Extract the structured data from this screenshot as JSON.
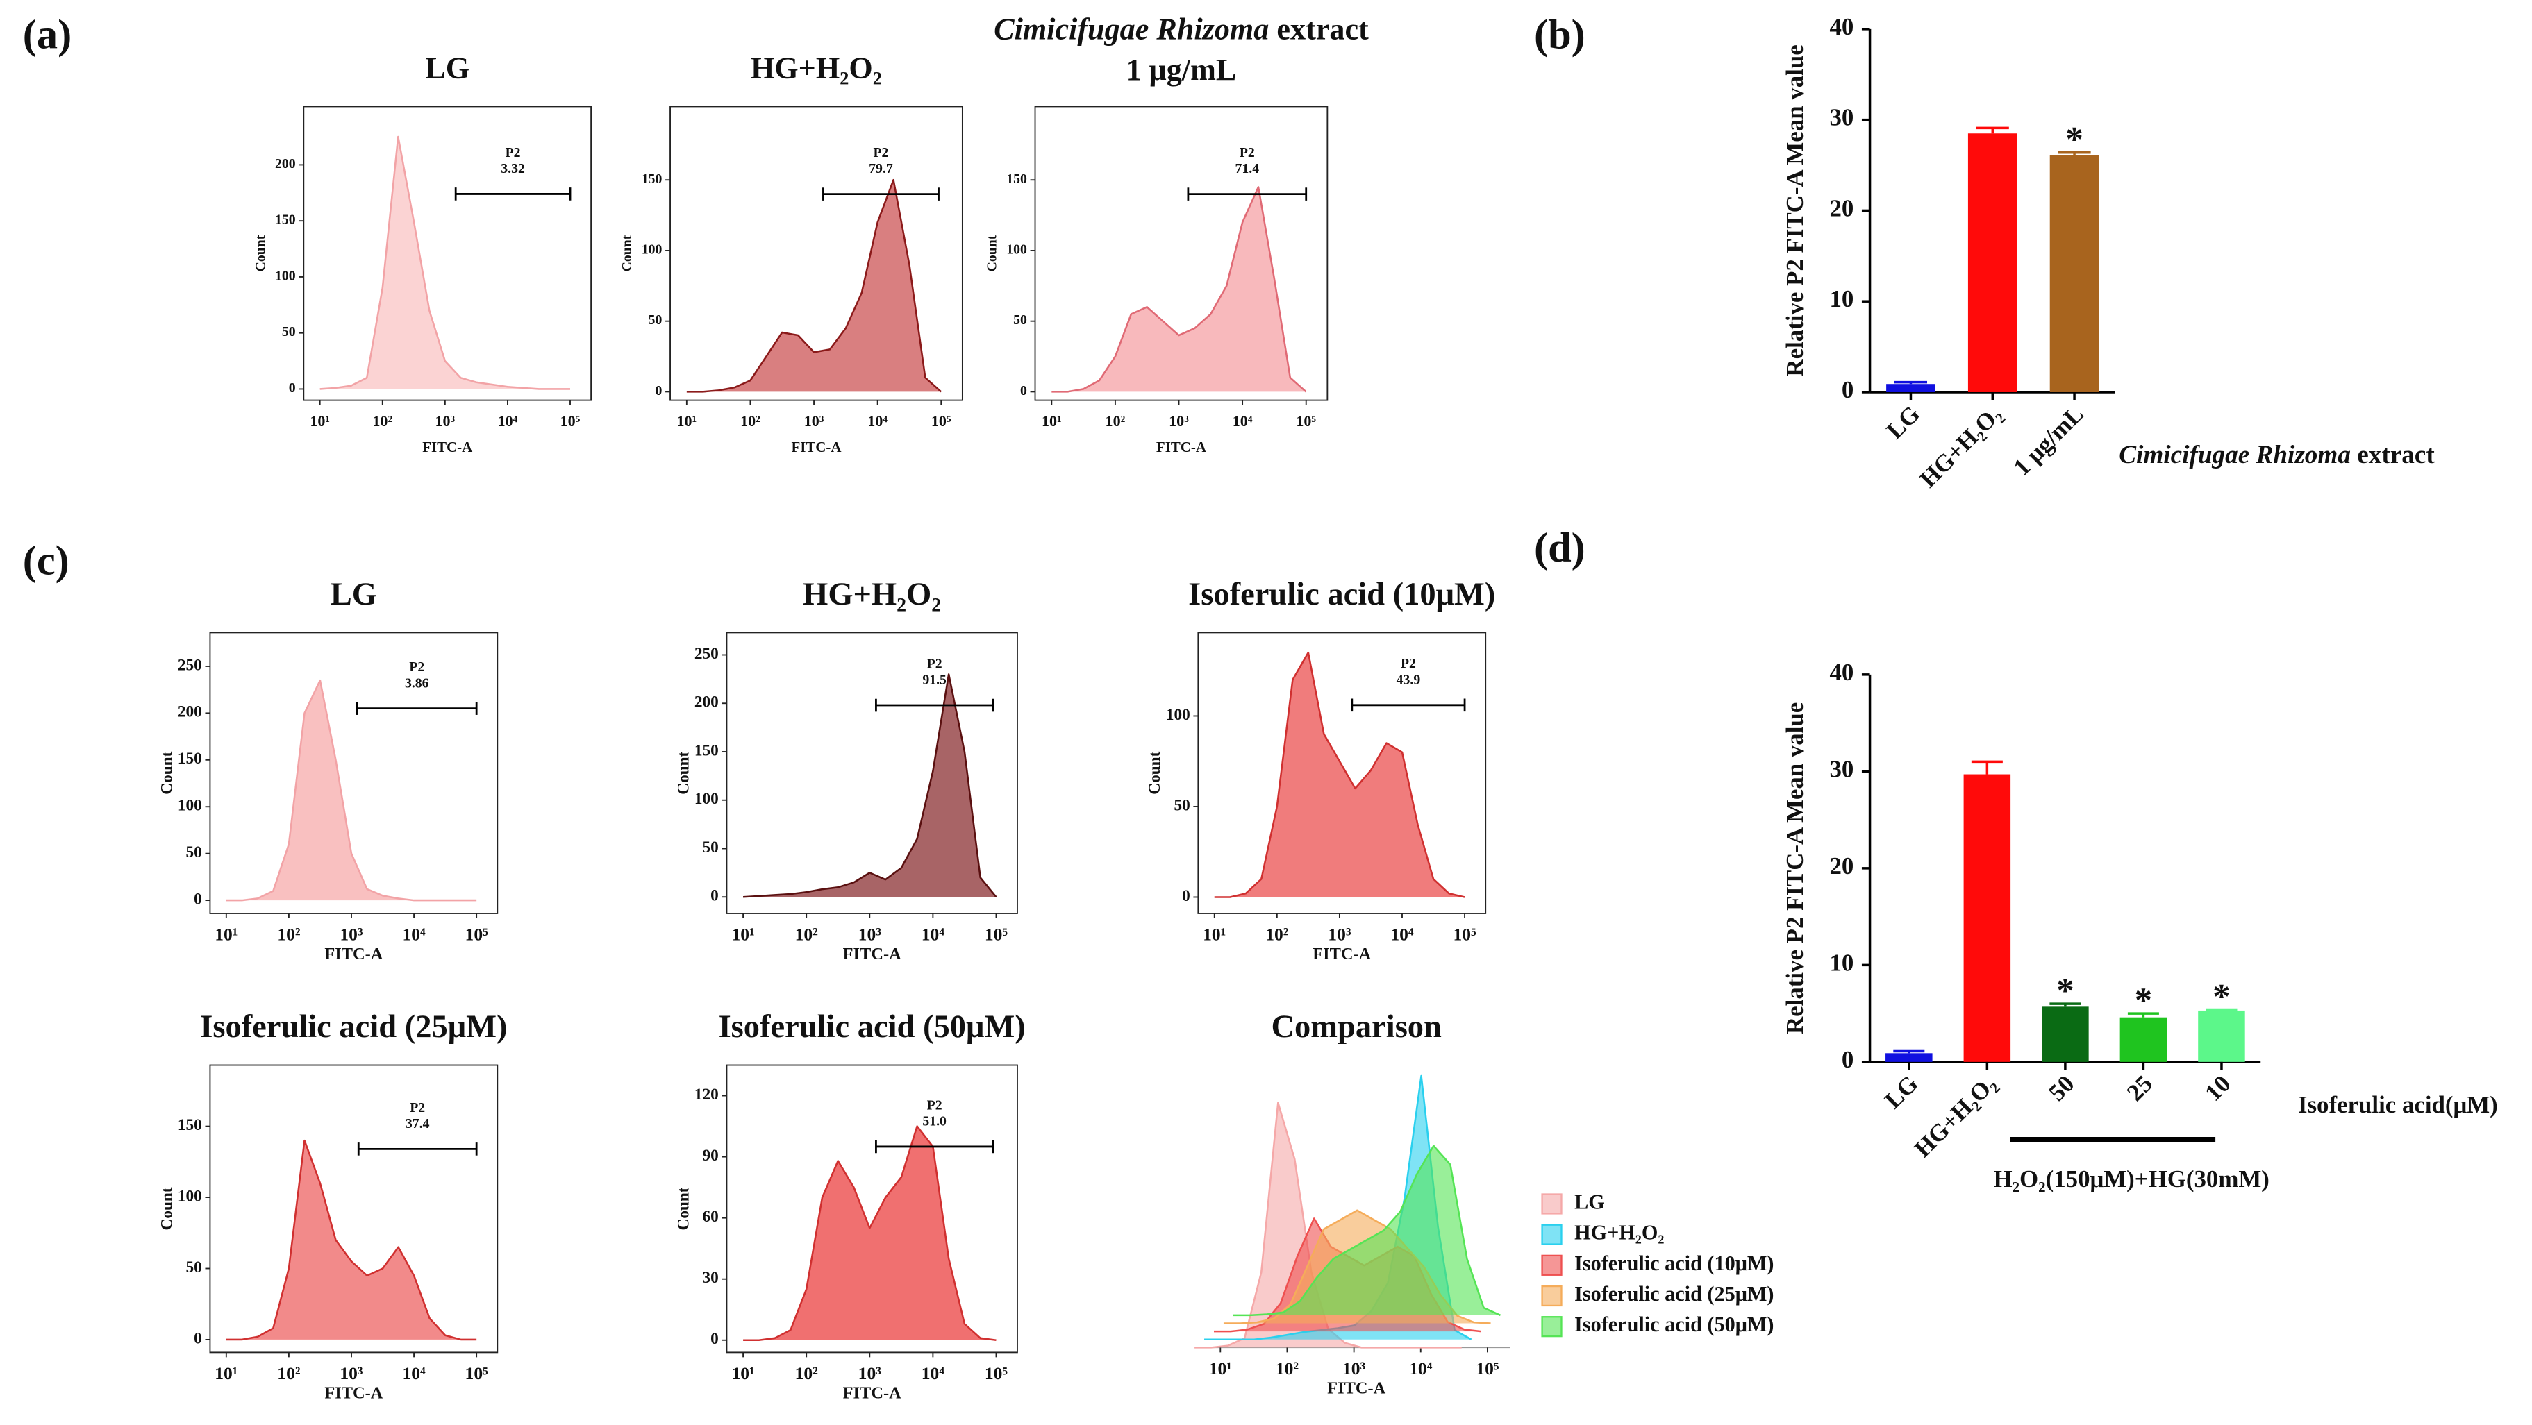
{
  "chart_data": [
    {
      "type": "area",
      "panel_label": "(a)",
      "title": "LG",
      "x_label": "FITC-A",
      "y_label": "Count",
      "x": [
        10,
        17.8,
        31.6,
        56.2,
        100,
        178,
        316,
        562,
        1000,
        1778,
        3162,
        5623,
        10000,
        17783,
        31623,
        56234,
        100000
      ],
      "values": [
        0,
        1,
        3,
        10,
        90,
        225,
        150,
        70,
        25,
        10,
        6,
        4,
        2,
        1,
        0,
        0,
        0
      ],
      "color": "#f2a3a6",
      "fill": "#fbd3d3",
      "xlog": true,
      "xlim": [
        5.5,
        216000
      ],
      "xticks": [
        {
          "value": 10,
          "label": "10¹"
        },
        {
          "value": 100,
          "label": "10²"
        },
        {
          "value": 1000,
          "label": "10³"
        },
        {
          "value": 10000,
          "label": "10⁴"
        },
        {
          "value": 100000,
          "label": "10⁵"
        }
      ],
      "ylim": [
        -10,
        252
      ],
      "yticks": [
        0,
        50,
        100,
        150,
        200
      ],
      "gate": {
        "name": "P2",
        "label": "3.32",
        "x": [
          1480,
          100000
        ],
        "y": 174,
        "color": "#000000"
      }
    },
    {
      "type": "area",
      "title": "HG+H₂O₂",
      "x_label": "FITC-A",
      "y_label": "Count",
      "x": [
        10,
        17.8,
        31.6,
        56.2,
        100,
        178,
        316,
        562,
        1000,
        1778,
        3162,
        5623,
        10000,
        17783,
        31623,
        56234,
        100000
      ],
      "values": [
        0,
        0,
        1,
        3,
        8,
        25,
        42,
        40,
        28,
        30,
        45,
        70,
        120,
        150,
        90,
        10,
        0
      ],
      "color": "#8b1a1a",
      "fill": "#d97f80",
      "xlog": true,
      "xlim": [
        5.5,
        216000
      ],
      "xticks": [
        {
          "value": 10,
          "label": "10¹"
        },
        {
          "value": 100,
          "label": "10²"
        },
        {
          "value": 1000,
          "label": "10³"
        },
        {
          "value": 10000,
          "label": "10⁴"
        },
        {
          "value": 100000,
          "label": "10⁵"
        }
      ],
      "ylim": [
        -6,
        202
      ],
      "yticks": [
        0,
        50,
        100,
        150
      ],
      "gate": {
        "name": "P2",
        "label": "79.7",
        "x": [
          1400,
          91000
        ],
        "y": 140,
        "color": "#000000"
      }
    },
    {
      "type": "area",
      "title": [
        {
          "text": "Cimicifugae Rhizoma",
          "italic": true
        },
        {
          "text": " extract"
        }
      ],
      "subtitle": "1 μg/mL",
      "x_label": "FITC-A",
      "y_label": "Count",
      "x": [
        10,
        17.8,
        31.6,
        56.2,
        100,
        178,
        316,
        562,
        1000,
        1778,
        3162,
        5623,
        10000,
        17783,
        31623,
        56234,
        100000
      ],
      "values": [
        0,
        0,
        2,
        8,
        25,
        55,
        60,
        50,
        40,
        45,
        55,
        75,
        120,
        145,
        80,
        10,
        0
      ],
      "color": "#e06a75",
      "fill": "#f8b9bc",
      "xlog": true,
      "xlim": [
        5.5,
        216000
      ],
      "xticks": [
        {
          "value": 10,
          "label": "10¹"
        },
        {
          "value": 100,
          "label": "10²"
        },
        {
          "value": 1000,
          "label": "10³"
        },
        {
          "value": 10000,
          "label": "10⁴"
        },
        {
          "value": 100000,
          "label": "10⁵"
        }
      ],
      "ylim": [
        -6,
        202
      ],
      "yticks": [
        0,
        50,
        100,
        150
      ],
      "gate": {
        "name": "P2",
        "label": "71.4",
        "x": [
          1400,
          100000
        ],
        "y": 140,
        "color": "#000000"
      }
    },
    {
      "type": "bar",
      "panel_label": "(b)",
      "y_label": "Relative P2 FITC-A Mean value",
      "categories": [
        "LG",
        "HG+H₂O₂",
        "1 μg/mL"
      ],
      "values": [
        0.9,
        28.5,
        26.1
      ],
      "errors": [
        0.2,
        0.6,
        0.3
      ],
      "colors": [
        "#1010e0",
        "#ff0a0a",
        "#a8641e"
      ],
      "significance": [
        null,
        null,
        "*"
      ],
      "group_label": [
        {
          "text": "Cimicifugae Rhizoma",
          "italic": true
        },
        {
          "text": " extract"
        }
      ],
      "ylim": [
        0,
        40
      ],
      "yticks": [
        0,
        10,
        20,
        30,
        40
      ]
    },
    {
      "type": "area",
      "panel_label": "(c)",
      "title": "LG",
      "x_label": "FITC-A",
      "y_label": "Count",
      "x": [
        10,
        17.8,
        31.6,
        56.2,
        100,
        178,
        316,
        562,
        1000,
        1778,
        3162,
        5623,
        10000,
        17783,
        31623,
        56234,
        100000
      ],
      "values": [
        0,
        0,
        2,
        10,
        60,
        200,
        235,
        150,
        50,
        12,
        5,
        2,
        0,
        0,
        0,
        0,
        0
      ],
      "color": "#f2a3a6",
      "fill": "#f9c0c0",
      "xlog": true,
      "xlim": [
        5.5,
        216000
      ],
      "xticks": [
        {
          "value": 10,
          "label": "10¹"
        },
        {
          "value": 100,
          "label": "10²"
        },
        {
          "value": 1000,
          "label": "10³"
        },
        {
          "value": 10000,
          "label": "10⁴"
        },
        {
          "value": 100000,
          "label": "10⁵"
        }
      ],
      "ylim": [
        -14,
        286
      ],
      "yticks": [
        0,
        50,
        100,
        150,
        200,
        250
      ],
      "gate": {
        "name": "P2",
        "label": "3.86",
        "x": [
          1240,
          100000
        ],
        "y": 205,
        "color": "#bbbbbb"
      }
    },
    {
      "type": "area",
      "title": "HG+H₂O₂",
      "x_label": "FITC-A",
      "y_label": "Count",
      "x": [
        10,
        17.8,
        31.6,
        56.2,
        100,
        178,
        316,
        562,
        1000,
        1778,
        3162,
        5623,
        10000,
        17783,
        31623,
        56234,
        100000
      ],
      "values": [
        0,
        1,
        2,
        3,
        5,
        8,
        10,
        15,
        25,
        18,
        30,
        60,
        130,
        230,
        150,
        20,
        0
      ],
      "color": "#5a1010",
      "fill": "#a86466",
      "xlog": true,
      "xlim": [
        5.5,
        216000
      ],
      "xticks": [
        {
          "value": 10,
          "label": "10¹"
        },
        {
          "value": 100,
          "label": "10²"
        },
        {
          "value": 1000,
          "label": "10³"
        },
        {
          "value": 10000,
          "label": "10⁴"
        },
        {
          "value": 100000,
          "label": "10⁵"
        }
      ],
      "ylim": [
        -17,
        273
      ],
      "yticks": [
        0,
        50,
        100,
        150,
        200,
        250
      ],
      "gate": {
        "name": "P2",
        "label": "91.5",
        "x": [
          1260,
          89000
        ],
        "y": 198,
        "color": "#bbbbbb"
      }
    },
    {
      "type": "area",
      "title": "Isoferulic acid (10μM)",
      "x_label": "FITC-A",
      "y_label": "Count",
      "x": [
        10,
        17.8,
        31.6,
        56.2,
        100,
        178,
        316,
        562,
        1000,
        1778,
        3162,
        5623,
        10000,
        17783,
        31623,
        56234,
        100000
      ],
      "values": [
        0,
        0,
        2,
        10,
        50,
        120,
        135,
        90,
        75,
        60,
        70,
        85,
        80,
        40,
        10,
        2,
        0
      ],
      "color": "#d03030",
      "fill": "#f07c7c",
      "xlog": true,
      "xlim": [
        5.5,
        216000
      ],
      "xticks": [
        {
          "value": 10,
          "label": "10¹"
        },
        {
          "value": 100,
          "label": "10²"
        },
        {
          "value": 1000,
          "label": "10³"
        },
        {
          "value": 10000,
          "label": "10⁴"
        },
        {
          "value": 100000,
          "label": "10⁵"
        }
      ],
      "ylim": [
        -9,
        146
      ],
      "yticks": [
        0,
        50,
        100
      ],
      "gate": {
        "name": "P2",
        "label": "43.9",
        "x": [
          1580,
          100000
        ],
        "y": 106,
        "color": "#bbbbbb"
      }
    },
    {
      "type": "area",
      "title": "Isoferulic acid (25μM)",
      "x_label": "FITC-A",
      "y_label": "Count",
      "x": [
        10,
        17.8,
        31.6,
        56.2,
        100,
        178,
        316,
        562,
        1000,
        1778,
        3162,
        5623,
        10000,
        17783,
        31623,
        56234,
        100000
      ],
      "values": [
        0,
        0,
        2,
        8,
        50,
        140,
        110,
        70,
        55,
        45,
        50,
        65,
        45,
        15,
        3,
        0,
        0
      ],
      "color": "#d03030",
      "fill": "#f28a8a",
      "xlog": true,
      "xlim": [
        5.5,
        216000
      ],
      "xticks": [
        {
          "value": 10,
          "label": "10¹"
        },
        {
          "value": 100,
          "label": "10²"
        },
        {
          "value": 1000,
          "label": "10³"
        },
        {
          "value": 10000,
          "label": "10⁴"
        },
        {
          "value": 100000,
          "label": "10⁵"
        }
      ],
      "ylim": [
        -9,
        193
      ],
      "yticks": [
        0,
        50,
        100,
        150
      ],
      "gate": {
        "name": "P2",
        "label": "37.4",
        "x": [
          1300,
          100000
        ],
        "y": 134,
        "color": "#bbbbbb"
      }
    },
    {
      "type": "area",
      "title": "Isoferulic acid (50μM)",
      "x_label": "FITC-A",
      "y_label": "Count",
      "x": [
        10,
        17.8,
        31.6,
        56.2,
        100,
        178,
        316,
        562,
        1000,
        1778,
        3162,
        5623,
        10000,
        17783,
        31623,
        56234,
        100000
      ],
      "values": [
        0,
        0,
        1,
        5,
        25,
        70,
        88,
        75,
        55,
        70,
        80,
        105,
        95,
        40,
        8,
        1,
        0
      ],
      "color": "#d03030",
      "fill": "#f07070",
      "xlog": true,
      "xlim": [
        5.5,
        216000
      ],
      "xticks": [
        {
          "value": 10,
          "label": "10¹"
        },
        {
          "value": 100,
          "label": "10²"
        },
        {
          "value": 1000,
          "label": "10³"
        },
        {
          "value": 10000,
          "label": "10⁴"
        },
        {
          "value": 100000,
          "label": "10⁵"
        }
      ],
      "ylim": [
        -6,
        135
      ],
      "yticks": [
        0,
        30,
        60,
        90,
        120
      ],
      "gate": {
        "name": "P2",
        "label": "51.0",
        "x": [
          1260,
          89000
        ],
        "y": 95,
        "color": "#bbbbbb"
      }
    },
    {
      "type": "area",
      "title": "Comparison",
      "x_label": "FITC-A",
      "frame": false,
      "legend": "right",
      "x": [
        10,
        17.8,
        31.6,
        56.2,
        100,
        178,
        316,
        562,
        1000,
        1778,
        3162,
        5623,
        10000,
        17783,
        31623,
        56234,
        100000
      ],
      "series": [
        {
          "name": "LG",
          "color": "#f5a8a8",
          "values": [
            0,
            0,
            2,
            10,
            80,
            260,
            200,
            80,
            20,
            5,
            0,
            0,
            0,
            0,
            0,
            0,
            0
          ]
        },
        {
          "name": "HG+H₂O₂",
          "color": "#2ad0ee",
          "values": [
            0,
            0,
            0,
            0,
            2,
            5,
            8,
            10,
            12,
            15,
            30,
            60,
            150,
            280,
            120,
            10,
            0
          ]
        },
        {
          "name": "Isoferulic acid (10μM)",
          "color": "#ee5050",
          "values": [
            0,
            0,
            2,
            8,
            30,
            80,
            120,
            90,
            80,
            70,
            80,
            90,
            80,
            40,
            10,
            2,
            0
          ]
        },
        {
          "name": "Isoferulic acid (25μM)",
          "color": "#f5ac5a",
          "values": [
            0,
            0,
            1,
            5,
            20,
            60,
            100,
            110,
            120,
            110,
            100,
            80,
            60,
            30,
            8,
            1,
            0
          ]
        },
        {
          "name": "Isoferulic acid (50μM)",
          "color": "#55e455",
          "values": [
            0,
            0,
            1,
            3,
            15,
            40,
            60,
            70,
            80,
            90,
            110,
            150,
            180,
            160,
            60,
            8,
            0
          ]
        }
      ],
      "xlog": true,
      "xlim": [
        5.5,
        216000
      ],
      "xticks": [
        {
          "value": 10,
          "label": "10¹"
        },
        {
          "value": 100,
          "label": "10²"
        },
        {
          "value": 1000,
          "label": "10³"
        },
        {
          "value": 10000,
          "label": "10⁴"
        },
        {
          "value": 100000,
          "label": "10⁵"
        }
      ],
      "ylim": [
        0,
        300
      ]
    },
    {
      "type": "bar",
      "panel_label": "(d)",
      "y_label": "Relative P2 FITC-A Mean value",
      "categories": [
        "LG",
        "HG+H₂O₂",
        "50",
        "25",
        "10"
      ],
      "values": [
        0.9,
        29.7,
        5.7,
        4.6,
        5.3
      ],
      "errors": [
        0.2,
        1.3,
        0.3,
        0.4,
        0.1
      ],
      "colors": [
        "#1010e0",
        "#ff0a0a",
        "#0a6b14",
        "#1fc41f",
        "#5cf78a"
      ],
      "significance": [
        null,
        null,
        "*",
        "*",
        "*"
      ],
      "x_label": "Isoferulic acid(μM)",
      "group_label": "H₂O₂(150μM)+HG(30mM)",
      "ylim": [
        0,
        40
      ],
      "yticks": [
        0,
        10,
        20,
        30,
        40
      ]
    }
  ]
}
